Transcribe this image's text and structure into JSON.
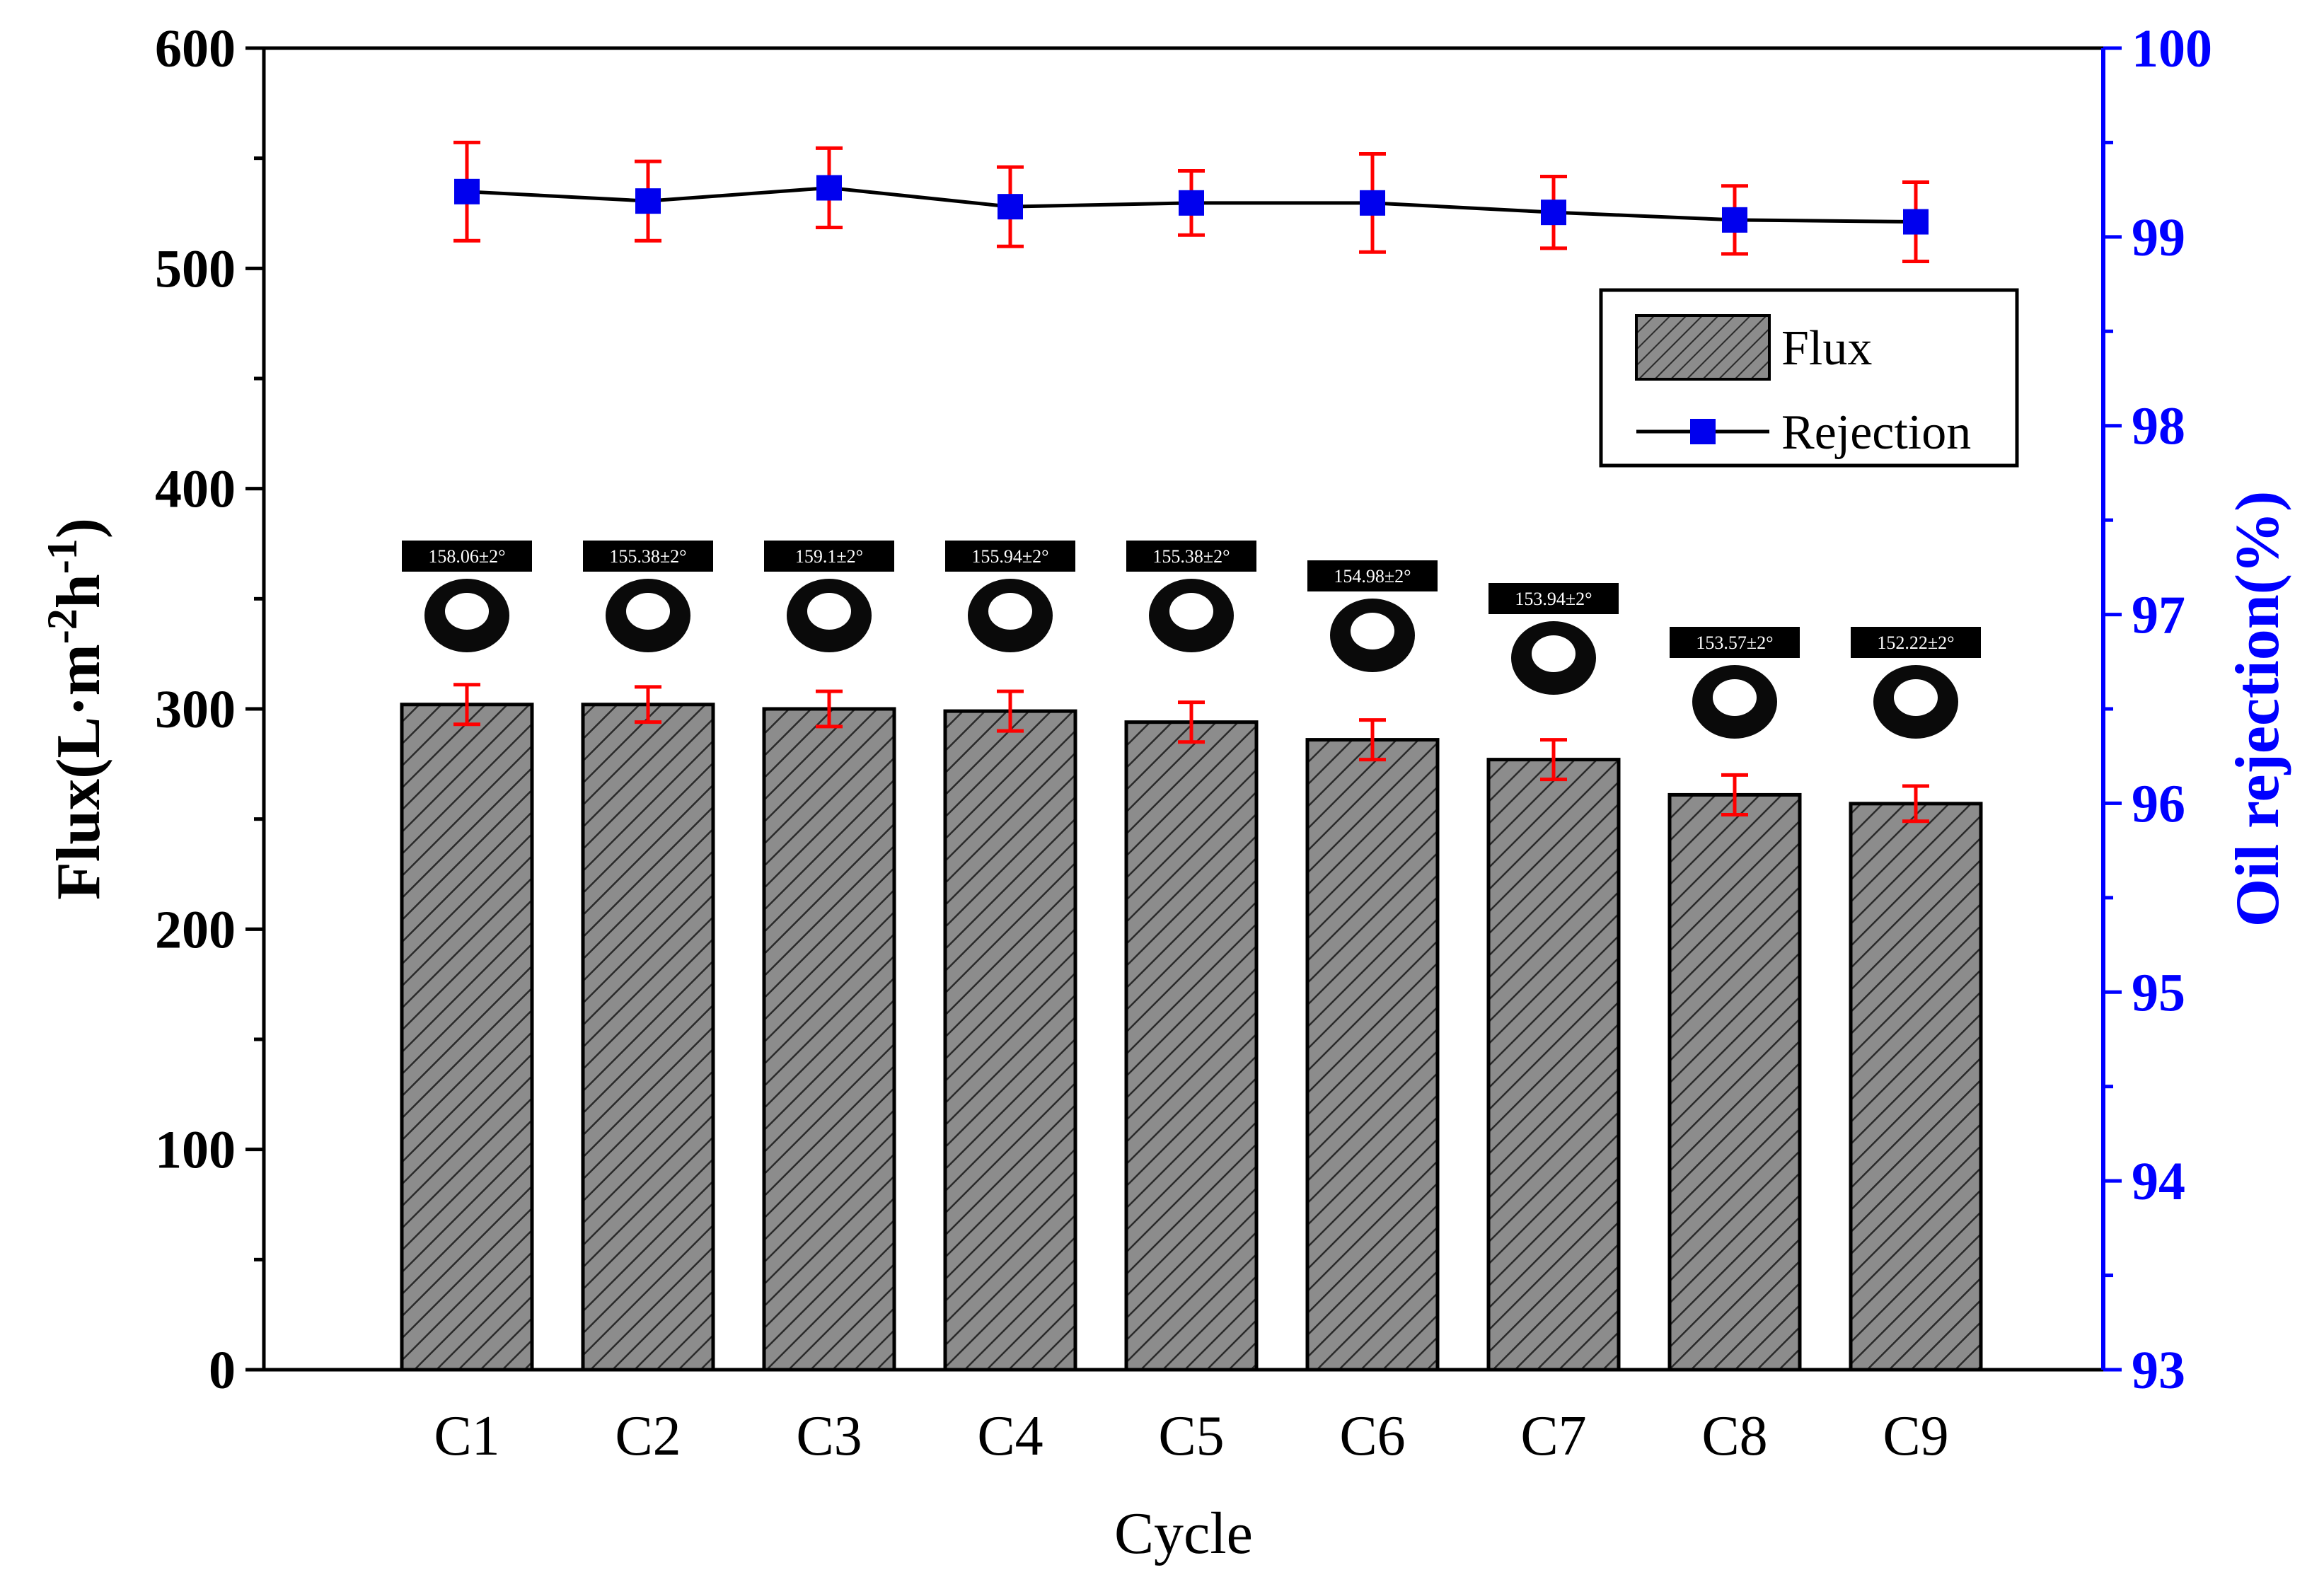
{
  "chart_data": {
    "type": "bar",
    "categories": [
      "C1",
      "C2",
      "C3",
      "C4",
      "C5",
      "C6",
      "C7",
      "C8",
      "C9"
    ],
    "series": [
      {
        "name": "Flux",
        "type": "bar",
        "axis": "left",
        "values": [
          302,
          302,
          300,
          299,
          294,
          286,
          277,
          261,
          257
        ],
        "errors": [
          9,
          8,
          8,
          9,
          9,
          9,
          9,
          9,
          8
        ]
      },
      {
        "name": "Rejection",
        "type": "line",
        "axis": "right",
        "values": [
          99.24,
          99.19,
          99.26,
          99.16,
          99.18,
          99.18,
          99.13,
          99.09,
          99.08
        ],
        "errors": [
          0.26,
          0.21,
          0.21,
          0.21,
          0.17,
          0.26,
          0.19,
          0.18,
          0.21
        ]
      }
    ],
    "contact_angles": [
      "158.06±2°",
      "155.38±2°",
      "159.1±2°",
      "155.94±2°",
      "155.38±2°",
      "154.98±2°",
      "153.94±2°",
      "153.57±2°",
      "152.22±2°"
    ],
    "xlabel": "Cycle",
    "ylabel": "Flux(L·m⁻²h⁻¹)",
    "ylabel_parts": {
      "main": "Flux(L·m",
      "sup1": "-2",
      "mid": "h",
      "sup2": "-1",
      "end": ")"
    },
    "y2label": "Oil rejection(%)",
    "ylim": [
      0,
      600
    ],
    "yticks": [
      0,
      100,
      200,
      300,
      400,
      500,
      600
    ],
    "y2lim": [
      93,
      100
    ],
    "y2ticks": [
      93,
      94,
      95,
      96,
      97,
      98,
      99,
      100
    ],
    "legend": {
      "position": "upper-right",
      "entries": [
        "Flux",
        "Rejection"
      ]
    },
    "grid": false
  },
  "colors": {
    "bar_fill": "#8c8c8c",
    "bar_hatch": "#2a2a2a",
    "error_bar": "#ff0000",
    "rejection_marker": "#0000ee",
    "right_axis": "#0000ff",
    "axis": "#000000"
  }
}
